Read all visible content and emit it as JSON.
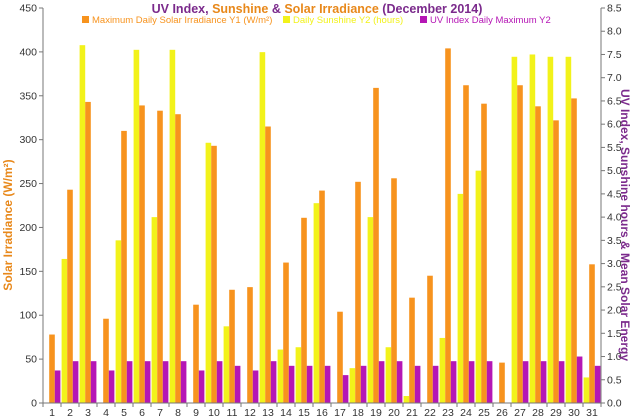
{
  "chart_data": {
    "type": "bar",
    "title": {
      "parts": [
        {
          "text": "UV Index",
          "color": "#7b2a8c"
        },
        {
          "text": ", ",
          "color": "#7b2a8c"
        },
        {
          "text": "Sunshine",
          "color": "#e8881a"
        },
        {
          "text": " & ",
          "color": "#7b2a8c"
        },
        {
          "text": "Solar Irradiance",
          "color": "#e8881a"
        },
        {
          "text": " (December 2014)",
          "color": "#7b2a8c"
        }
      ]
    },
    "ylabel": "Solar Irradiance (W/m²)",
    "y2label": "UV Index, Sunshine hours & Mean Solar Energy",
    "ylim": [
      0,
      450
    ],
    "y2lim": [
      0,
      8.5
    ],
    "yticks": [
      "0",
      "50",
      "100",
      "150",
      "200",
      "250",
      "300",
      "350",
      "400",
      "450"
    ],
    "y2ticks": [
      "0.0",
      "0.5",
      "1.0",
      "1.5",
      "2.0",
      "2.5",
      "3.0",
      "3.5",
      "4.0",
      "4.5",
      "5.0",
      "5.5",
      "6.0",
      "6.5",
      "7.0",
      "7.5",
      "8.0",
      "8.5"
    ],
    "categories": [
      "1",
      "2",
      "3",
      "4",
      "5",
      "6",
      "7",
      "8",
      "9",
      "10",
      "11",
      "12",
      "13",
      "14",
      "15",
      "16",
      "17",
      "18",
      "19",
      "20",
      "21",
      "22",
      "23",
      "24",
      "25",
      "26",
      "27",
      "28",
      "29",
      "30",
      "31"
    ],
    "grid": false,
    "legend_position": "top",
    "series": [
      {
        "name": "Maximum Daily Solar Irradiance Y1 (W/m²)",
        "axis": "y1",
        "color": "#f7931e",
        "values": [
          78,
          243,
          343,
          96,
          310,
          339,
          333,
          329,
          112,
          293,
          129,
          132,
          315,
          160,
          211,
          242,
          104,
          252,
          359,
          256,
          120,
          145,
          404,
          362,
          341,
          46,
          362,
          338,
          322,
          347,
          158
        ]
      },
      {
        "name": "Daily Sunshine Y2 (hours)",
        "axis": "y2",
        "color": "#f2f21a",
        "values": [
          0,
          3.1,
          7.7,
          0,
          3.5,
          7.6,
          4.0,
          7.6,
          0,
          5.6,
          1.65,
          0,
          7.55,
          1.15,
          1.2,
          4.3,
          0,
          0.75,
          4.0,
          1.2,
          0.15,
          0,
          1.4,
          4.5,
          5.0,
          0,
          7.45,
          7.5,
          7.45,
          7.45,
          0.55
        ]
      },
      {
        "name": "UV Index Daily Maximum Y2",
        "axis": "y2",
        "color": "#b516b5",
        "values": [
          0.7,
          0.9,
          0.9,
          0.7,
          0.9,
          0.9,
          0.9,
          0.9,
          0.7,
          0.9,
          0.8,
          0.7,
          0.9,
          0.8,
          0.8,
          0.8,
          0.6,
          0.8,
          0.9,
          0.9,
          0.8,
          0.8,
          0.9,
          0.9,
          0.9,
          0,
          0.9,
          0.9,
          0.9,
          1.0,
          0.8
        ]
      }
    ]
  }
}
